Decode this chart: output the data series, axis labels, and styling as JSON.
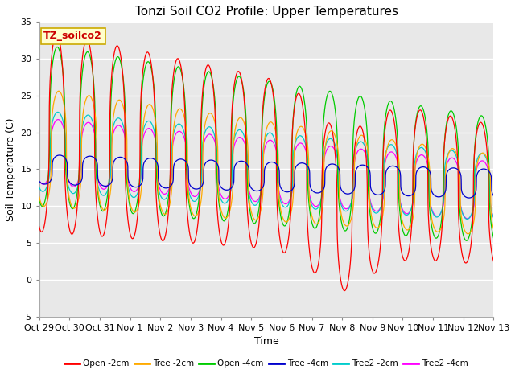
{
  "title": "Tonzi Soil CO2 Profile: Upper Temperatures",
  "xlabel": "Time",
  "ylabel": "Soil Temperature (C)",
  "ylim": [
    -5,
    35
  ],
  "yticks": [
    -5,
    0,
    5,
    10,
    15,
    20,
    25,
    30,
    35
  ],
  "xtick_labels": [
    "Oct 29",
    "Oct 30",
    "Oct 31",
    "Nov 1",
    "Nov 2",
    "Nov 3",
    "Nov 4",
    "Nov 5",
    "Nov 6",
    "Nov 7",
    "Nov 8",
    "Nov 9",
    "Nov 10",
    "Nov 11",
    "Nov 12",
    "Nov 13"
  ],
  "legend_entries": [
    "Open -2cm",
    "Tree -2cm",
    "Open -4cm",
    "Tree -4cm",
    "Tree2 -2cm",
    "Tree2 -4cm"
  ],
  "legend_colors": [
    "#ff0000",
    "#ffaa00",
    "#00cc00",
    "#0000cc",
    "#00cccc",
    "#ff00ff"
  ],
  "box_label": "TZ_soilco2",
  "box_bg": "#ffffcc",
  "box_text_color": "#cc0000",
  "box_edge_color": "#ccaa00",
  "plot_bg": "#e8e8e8",
  "fig_bg": "#ffffff",
  "grid_color": "#ffffff",
  "title_fontsize": 11,
  "tick_fontsize": 8,
  "label_fontsize": 9
}
